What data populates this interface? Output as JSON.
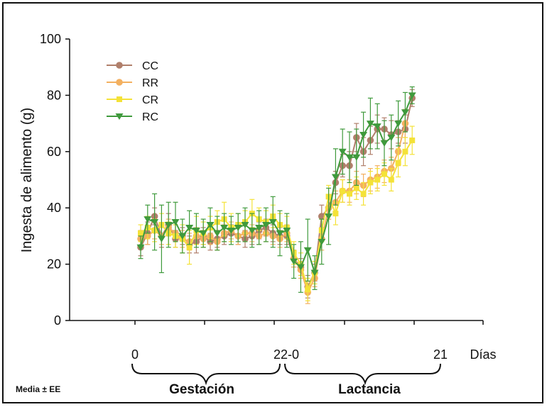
{
  "chart_data": {
    "type": "line",
    "title": "",
    "xlabel": "",
    "ylabel": "Ingesta de alimento (g)",
    "ylim": [
      0,
      100
    ],
    "yticks": [
      0,
      20,
      40,
      60,
      80,
      100
    ],
    "x_markers": [
      "0",
      "22-0",
      "21",
      "Días"
    ],
    "periods": [
      "Gestación",
      "Lactancia"
    ],
    "note": "Media ± EE",
    "legend_position": "top-left",
    "series": [
      {
        "name": "CC",
        "color": "#b07f6b",
        "marker": "circle",
        "x": [
          1,
          2,
          3,
          4,
          5,
          6,
          7,
          8,
          9,
          10,
          11,
          12,
          13,
          14,
          15,
          16,
          17,
          18,
          19,
          20,
          21,
          22,
          23,
          24,
          25,
          26,
          27,
          28,
          29,
          30,
          31,
          32,
          33,
          34,
          35,
          36,
          37,
          38,
          39,
          40,
          41,
          42,
          43,
          44
        ],
        "y": [
          26,
          31,
          37,
          30,
          34,
          29,
          30,
          27,
          28,
          30,
          28,
          29,
          30,
          31,
          30,
          29,
          30,
          32,
          33,
          31,
          30,
          30,
          22,
          19,
          12,
          17,
          37,
          40,
          49,
          55,
          55,
          65,
          60,
          64,
          68,
          68,
          66,
          67,
          68,
          79,
          null,
          null,
          null,
          null
        ],
        "err": [
          3,
          4,
          3,
          4,
          4,
          3,
          3,
          3,
          4,
          3,
          3,
          3,
          3,
          3,
          3,
          3,
          3,
          3,
          3,
          3,
          3,
          3,
          3,
          3,
          4,
          3,
          4,
          4,
          4,
          4,
          5,
          5,
          5,
          5,
          5,
          4,
          5,
          4,
          5,
          3,
          null,
          null,
          null,
          null
        ]
      },
      {
        "name": "RR",
        "color": "#f3b060",
        "marker": "circle",
        "x": [
          1,
          2,
          3,
          4,
          5,
          6,
          7,
          8,
          9,
          10,
          11,
          12,
          13,
          14,
          15,
          16,
          17,
          18,
          19,
          20,
          21,
          22,
          23,
          24,
          25,
          26,
          27,
          28,
          29,
          30,
          31,
          32,
          33,
          34,
          35,
          36,
          37,
          38,
          39,
          40,
          41,
          42,
          43,
          44
        ],
        "y": [
          29,
          30,
          32,
          30,
          33,
          31,
          29,
          28,
          30,
          29,
          30,
          28,
          31,
          32,
          30,
          31,
          31,
          30,
          31,
          30,
          29,
          31,
          22,
          18,
          10,
          15,
          29,
          40,
          42,
          46,
          46,
          49,
          48,
          50,
          51,
          53,
          54,
          60,
          70,
          null,
          null,
          null,
          null,
          null
        ],
        "err": [
          3,
          3,
          3,
          3,
          3,
          3,
          3,
          3,
          3,
          3,
          3,
          3,
          3,
          3,
          3,
          3,
          3,
          3,
          3,
          3,
          3,
          3,
          3,
          3,
          4,
          3,
          4,
          4,
          4,
          4,
          4,
          4,
          4,
          4,
          4,
          4,
          4,
          5,
          5,
          null,
          null,
          null,
          null,
          null
        ]
      },
      {
        "name": "CR",
        "color": "#f4e238",
        "marker": "square",
        "x": [
          1,
          2,
          3,
          4,
          5,
          6,
          7,
          8,
          9,
          10,
          11,
          12,
          13,
          14,
          15,
          16,
          17,
          18,
          19,
          20,
          21,
          22,
          23,
          24,
          25,
          26,
          27,
          28,
          29,
          30,
          31,
          32,
          33,
          34,
          35,
          36,
          37,
          38,
          39,
          40,
          41,
          42,
          43,
          44
        ],
        "y": [
          31,
          33,
          32,
          34,
          31,
          30,
          29,
          26,
          32,
          31,
          33,
          35,
          36,
          33,
          34,
          35,
          38,
          36,
          35,
          37,
          34,
          33,
          24,
          20,
          11,
          17,
          32,
          44,
          38,
          46,
          45,
          47,
          45,
          49,
          50,
          52,
          50,
          56,
          60,
          64,
          null,
          null,
          null,
          null
        ],
        "err": [
          3,
          4,
          4,
          4,
          4,
          4,
          5,
          6,
          5,
          4,
          4,
          4,
          6,
          5,
          4,
          4,
          5,
          4,
          4,
          4,
          4,
          4,
          4,
          4,
          4,
          4,
          4,
          4,
          4,
          4,
          4,
          4,
          4,
          4,
          4,
          4,
          4,
          5,
          5,
          5,
          null,
          null,
          null,
          null
        ]
      },
      {
        "name": "RC",
        "color": "#3f9a3c",
        "marker": "triangle-down",
        "x": [
          1,
          2,
          3,
          4,
          5,
          6,
          7,
          8,
          9,
          10,
          11,
          12,
          13,
          14,
          15,
          16,
          17,
          18,
          19,
          20,
          21,
          22,
          23,
          24,
          25,
          26,
          27,
          28,
          29,
          30,
          31,
          32,
          33,
          34,
          35,
          36,
          37,
          38,
          39,
          40,
          41,
          42,
          43,
          44
        ],
        "y": [
          26,
          36,
          35,
          29,
          34,
          35,
          30,
          33,
          32,
          31,
          34,
          31,
          33,
          32,
          33,
          34,
          32,
          33,
          34,
          35,
          31,
          32,
          21,
          19,
          25,
          17,
          28,
          37,
          51,
          60,
          58,
          58,
          66,
          70,
          69,
          63,
          65,
          70,
          74,
          80,
          null,
          null,
          null,
          null
        ],
        "err": [
          4,
          5,
          10,
          12,
          8,
          7,
          6,
          6,
          6,
          5,
          6,
          6,
          5,
          5,
          5,
          6,
          6,
          6,
          6,
          9,
          8,
          6,
          6,
          9,
          11,
          6,
          8,
          10,
          10,
          8,
          9,
          10,
          8,
          9,
          8,
          8,
          8,
          8,
          7,
          3,
          null,
          null,
          null,
          null
        ]
      }
    ]
  }
}
